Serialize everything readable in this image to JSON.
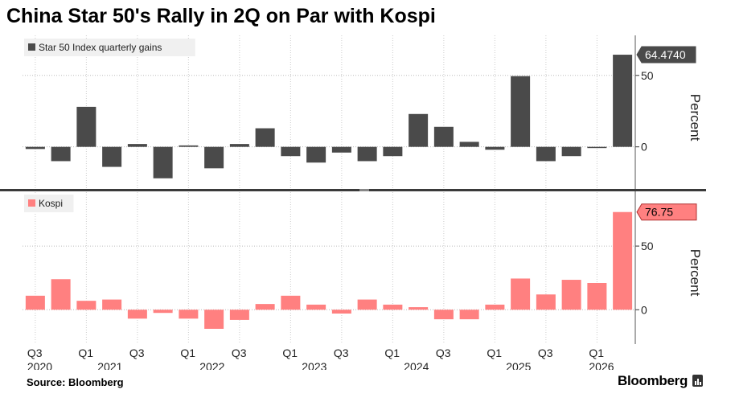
{
  "title": "China Star 50's Rally in 2Q on Par with Kospi",
  "source": "Source: Bloomberg",
  "brand": "Bloomberg",
  "chart_data": [
    {
      "type": "bar",
      "categories": [
        "Q3 2020",
        "Q4 2020",
        "Q1 2021",
        "Q2 2021",
        "Q3 2021",
        "Q4 2021",
        "Q1 2022",
        "Q2 2022",
        "Q3 2022",
        "Q4 2022",
        "Q1 2023",
        "Q2 2023",
        "Q3 2023",
        "Q4 2023",
        "Q1 2024",
        "Q2 2024",
        "Q3 2024",
        "Q4 2024",
        "Q1 2025",
        "Q2 2025",
        "Q3 2025",
        "Q4 2025",
        "Q1 2026",
        "Q2 2026"
      ],
      "series": [
        {
          "name": "Star 50 Index quarterly gains",
          "color": "#4a4a4a",
          "values": [
            -1.5,
            -10,
            28,
            -14,
            2,
            -22,
            1,
            -15,
            2,
            13,
            -6.5,
            -11,
            -4,
            -10,
            -6.5,
            23,
            14,
            3.5,
            -2,
            49.5,
            -10,
            -6.5,
            -0.5,
            64.474
          ]
        }
      ],
      "ylabel": "Percent",
      "ylim": [
        -30,
        78
      ],
      "yticks": [
        0,
        50
      ],
      "last_value_label": "64.4740",
      "grid": true,
      "legend": "top-left"
    },
    {
      "type": "bar",
      "categories": [
        "Q3 2020",
        "Q4 2020",
        "Q1 2021",
        "Q2 2021",
        "Q3 2021",
        "Q4 2021",
        "Q1 2022",
        "Q2 2022",
        "Q3 2022",
        "Q4 2022",
        "Q1 2023",
        "Q2 2023",
        "Q3 2023",
        "Q4 2023",
        "Q1 2024",
        "Q2 2024",
        "Q3 2024",
        "Q4 2024",
        "Q1 2025",
        "Q2 2025",
        "Q3 2025",
        "Q4 2025",
        "Q1 2026",
        "Q2 2026"
      ],
      "series": [
        {
          "name": "Kospi",
          "color": "#ff8080",
          "values": [
            11,
            24,
            7,
            8,
            -7,
            -2.5,
            -7,
            -15,
            -8,
            4.5,
            11,
            4,
            -3,
            8,
            4,
            2,
            -7.5,
            -7.5,
            4,
            24.5,
            12,
            23.5,
            21,
            76.75
          ]
        }
      ],
      "ylabel": "Percent",
      "ylim": [
        -27,
        93
      ],
      "yticks": [
        0,
        50
      ],
      "last_value_label": "76.75",
      "grid": true,
      "legend": "top-left"
    }
  ],
  "x_axis": {
    "quarter_labels": [
      "Q3",
      "Q1",
      "Q3",
      "Q1",
      "Q3",
      "Q1",
      "Q3",
      "Q1",
      "Q3",
      "Q1",
      "Q3",
      "Q1"
    ],
    "quarter_label_index": [
      0,
      2,
      4,
      6,
      8,
      10,
      12,
      14,
      16,
      18,
      20,
      22
    ],
    "year_labels": [
      "2020",
      "2021",
      "2022",
      "2023",
      "2024",
      "2025",
      "2026"
    ],
    "year_label_index": [
      0,
      2,
      6,
      10,
      14,
      18,
      22
    ]
  }
}
